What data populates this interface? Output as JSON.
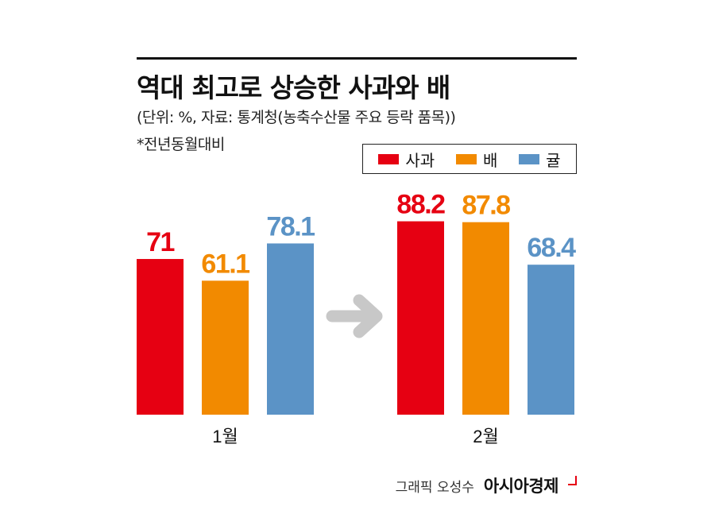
{
  "title": "역대 최고로 상승한 사과와 배",
  "subtitle": "(단위: %, 자료: 통계청(농축수산물 주요 등락 품목))",
  "note": "*전년동월대비",
  "credit": {
    "author": "그래픽 오성수",
    "brand": "아시아경제"
  },
  "colors": {
    "사과": "#e60012",
    "배": "#f28a00",
    "귤": "#5b93c6",
    "arrow": "#c8c8c8"
  },
  "chart_data": {
    "type": "bar",
    "categories": [
      "1월",
      "2월"
    ],
    "series": [
      {
        "name": "사과",
        "values": [
          71,
          88.2
        ]
      },
      {
        "name": "배",
        "values": [
          61.1,
          87.8
        ]
      },
      {
        "name": "귤",
        "values": [
          78.1,
          68.4
        ]
      }
    ],
    "data_labels": [
      [
        "71",
        "88.2"
      ],
      [
        "61.1",
        "87.8"
      ],
      [
        "78.1",
        "68.4"
      ]
    ],
    "legend": "top-right",
    "grid": false,
    "ylim": [
      0,
      100
    ],
    "annotations": [
      "arrow from 1월 to 2월"
    ]
  }
}
